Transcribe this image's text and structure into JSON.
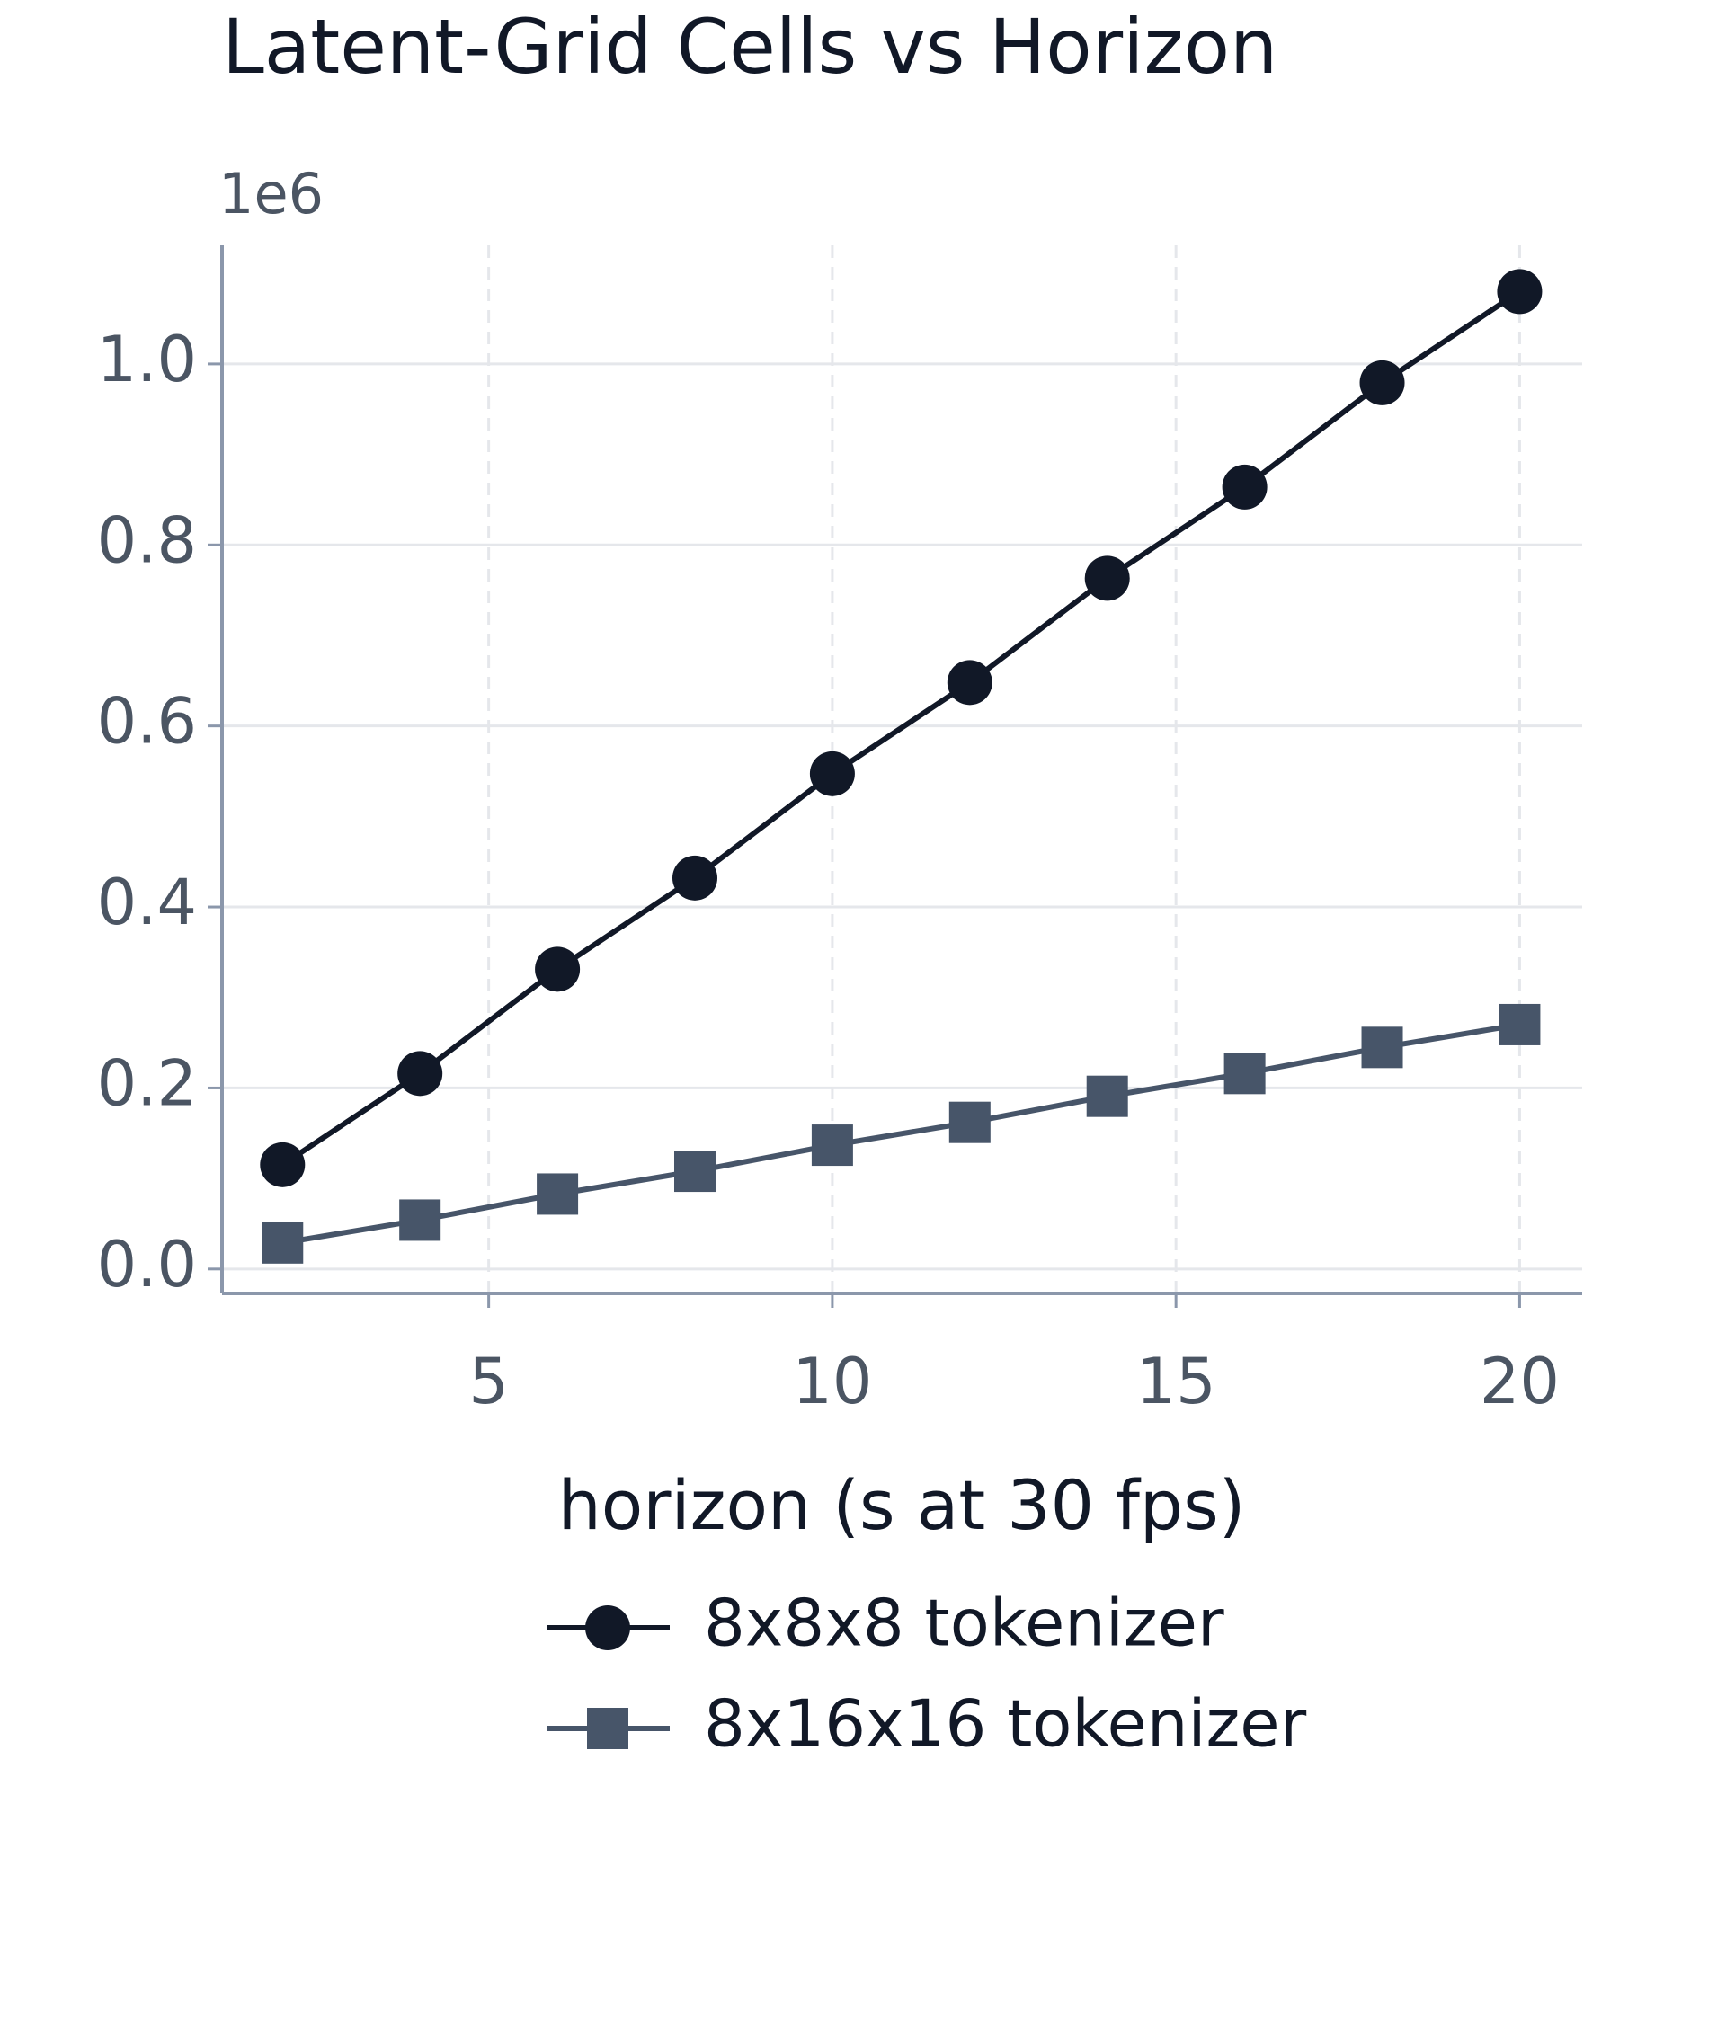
{
  "chart_data": {
    "type": "line",
    "title": "Latent-Grid Cells vs Horizon",
    "xlabel": "horizon (s at 30 fps)",
    "y_offset_label": "1e6",
    "x": [
      2,
      4,
      6,
      8,
      10,
      12,
      14,
      16,
      18,
      20
    ],
    "series": [
      {
        "name": "8x8x8 tokenizer",
        "color": "#111827",
        "marker": "circle",
        "values": [
          115200,
          216000,
          331200,
          432000,
          547200,
          648000,
          763200,
          864000,
          979200,
          1080000
        ]
      },
      {
        "name": "8x16x16 tokenizer",
        "color": "#475569",
        "marker": "square",
        "values": [
          28800,
          54000,
          82800,
          108000,
          136800,
          162000,
          190800,
          216000,
          244800,
          270000
        ]
      }
    ],
    "xlim": [
      1.12,
      20.91
    ],
    "ylim": [
      -27000,
      1131000
    ],
    "xticks": [
      5,
      10,
      15,
      20
    ],
    "yticks": [
      {
        "value": 0,
        "label": "0.0"
      },
      {
        "value": 200000,
        "label": "0.2"
      },
      {
        "value": 400000,
        "label": "0.4"
      },
      {
        "value": 600000,
        "label": "0.6"
      },
      {
        "value": 800000,
        "label": "0.8"
      },
      {
        "value": 1000000,
        "label": "1.0"
      }
    ],
    "grid": true,
    "legend": "below"
  }
}
